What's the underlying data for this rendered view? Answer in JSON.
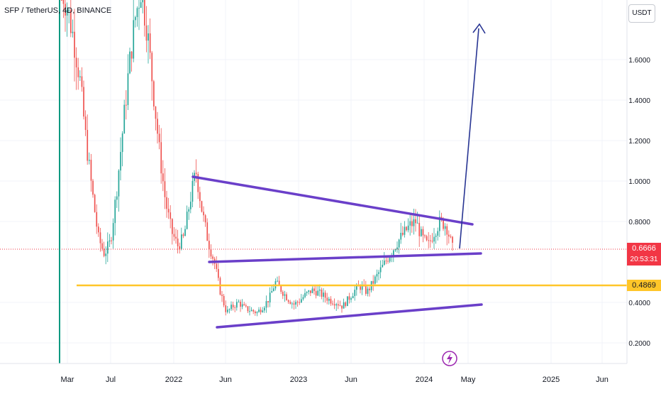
{
  "header": {
    "symbol_title": "SFP / TetherUS, 4D, BINANCE",
    "currency_label": "USDT"
  },
  "price_tags": {
    "current_price": "0.6666",
    "countdown": "20:53:31",
    "support_level": "0.4869"
  },
  "colors": {
    "bull_candle": "#26a69a",
    "bear_candle": "#ef5350",
    "trendline": "#6a3fc9",
    "support_line": "#ffc629",
    "arrow": "#283593",
    "current_price_line": "#f23645",
    "grid": "#f0f3fa"
  },
  "icons": {
    "lightning": "lightning-icon"
  },
  "chart_data": {
    "type": "candlestick",
    "title": "SFP / TetherUS, 4D, BINANCE",
    "y_ticks": [
      "1.6000",
      "1.4000",
      "1.2000",
      "1.0000",
      "0.8000",
      "0.4000",
      "0.2000"
    ],
    "x_ticks": [
      "Mar",
      "Jul",
      "2022",
      "Jun",
      "2023",
      "Jun",
      "2024",
      "May",
      "2025",
      "Jun"
    ],
    "ylim": [
      0.1,
      1.9
    ],
    "current_price": 0.6666,
    "support_level": 0.4869,
    "grid": true,
    "close_series": [
      1.95,
      1.85,
      1.7,
      1.5,
      1.2,
      0.95,
      0.72,
      0.64,
      0.7,
      0.95,
      1.25,
      1.55,
      1.8,
      1.95,
      1.75,
      1.45,
      1.15,
      0.9,
      0.75,
      0.68,
      0.72,
      0.9,
      1.05,
      0.85,
      0.7,
      0.6,
      0.45,
      0.35,
      0.38,
      0.4,
      0.37,
      0.36,
      0.35,
      0.38,
      0.42,
      0.5,
      0.46,
      0.42,
      0.39,
      0.41,
      0.44,
      0.46,
      0.45,
      0.43,
      0.41,
      0.4,
      0.38,
      0.42,
      0.46,
      0.48,
      0.45,
      0.5,
      0.55,
      0.6,
      0.65,
      0.7,
      0.74,
      0.78,
      0.8,
      0.72,
      0.68,
      0.75,
      0.8,
      0.78,
      0.6666
    ]
  }
}
